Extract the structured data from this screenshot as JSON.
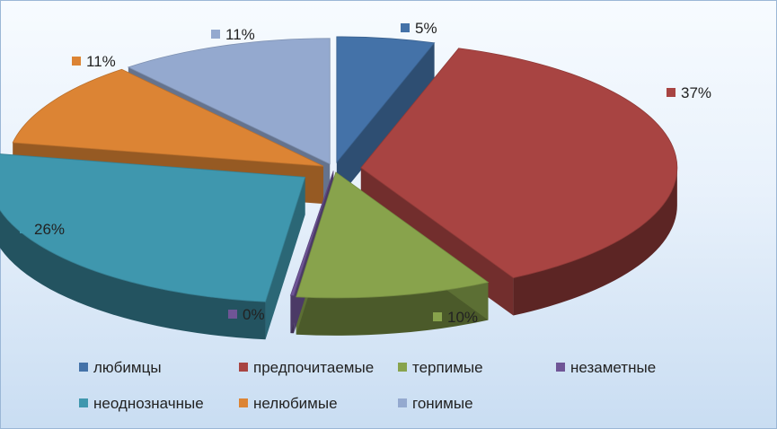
{
  "chart_data": {
    "type": "pie",
    "title": "",
    "categories": [
      "любимцы",
      "предпочитаемые",
      "терпимые",
      "незаметные",
      "неоднозначные",
      "нелюбимые",
      "гонимые"
    ],
    "values": [
      5,
      37,
      10,
      0,
      26,
      11,
      11
    ],
    "data_labels": [
      "5%",
      "37%",
      "10%",
      "0%",
      "26%",
      "11%",
      "11%"
    ],
    "colors": [
      "#4472a8",
      "#a84442",
      "#88a34c",
      "#6f5596",
      "#3f97ae",
      "#dc8434",
      "#94a9cf"
    ],
    "legend_position": "bottom",
    "style": "3d exploded pie"
  }
}
